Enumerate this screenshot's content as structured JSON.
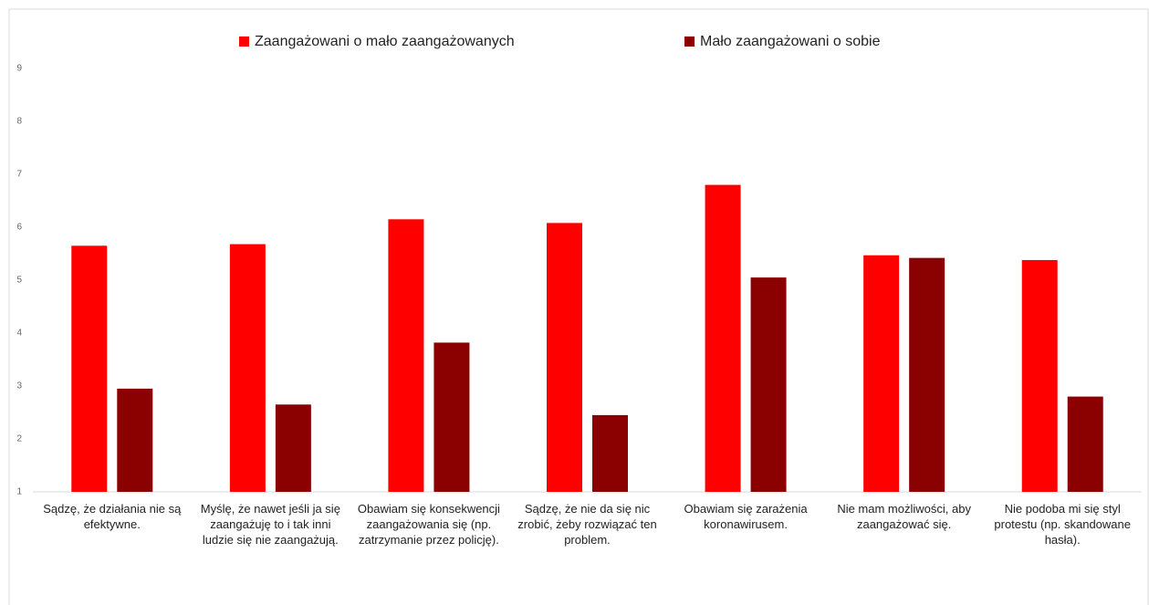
{
  "chart_data": {
    "type": "bar",
    "categories": [
      "Sądzę, że działania nie są efektywne.",
      "Myślę, że nawet jeśli ja się zaangażuję to i tak inni ludzie się nie zaangażują.",
      "Obawiam się konsekwencji zaangażowania się (np. zatrzymanie przez policję).",
      "Sądzę, że nie da się nic zrobić, żeby rozwiązać ten problem.",
      "Obawiam się zarażenia koronawirusem.",
      "Nie mam możliwości, aby zaangażować się.",
      "Nie podoba mi się styl protestu (np. skandowane hasła)."
    ],
    "series": [
      {
        "name": "Zaangażowani o mało zaangażowanych",
        "color": "#ff0000",
        "values": [
          5.65,
          5.68,
          6.15,
          6.08,
          6.8,
          5.47,
          5.38
        ]
      },
      {
        "name": "Mało zaangażowani o sobie",
        "color": "#8b0000",
        "values": [
          2.95,
          2.65,
          3.82,
          2.45,
          5.05,
          5.42,
          2.8
        ]
      }
    ],
    "ylim": [
      1,
      9
    ],
    "yticks": [
      1,
      2,
      3,
      4,
      5,
      6,
      7,
      8,
      9
    ],
    "grid": false,
    "legend": "top"
  }
}
